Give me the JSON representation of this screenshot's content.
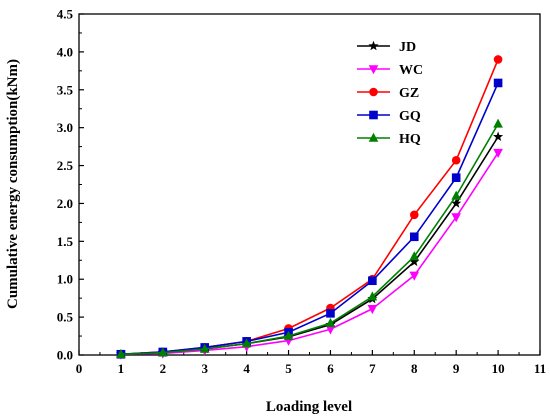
{
  "chart_data": {
    "type": "line",
    "title": "",
    "xlabel": "Loading level",
    "ylabel": "Cumulative energy consumption(kNm)",
    "xlim": [
      0,
      11
    ],
    "ylim": [
      0,
      4.5
    ],
    "x_ticks": [
      "0",
      "1",
      "2",
      "3",
      "4",
      "5",
      "6",
      "7",
      "8",
      "9",
      "10",
      "11"
    ],
    "y_ticks": [
      "0.0",
      "0.5",
      "1.0",
      "1.5",
      "2.0",
      "2.5",
      "3.0",
      "3.5",
      "4.0",
      "4.5"
    ],
    "grid": false,
    "legend_position": "top-right",
    "x": [
      1,
      2,
      3,
      4,
      5,
      6,
      7,
      8,
      9,
      10
    ],
    "series": [
      {
        "name": "JD",
        "color": "#000000",
        "marker": "star",
        "values": [
          0.01,
          0.03,
          0.08,
          0.15,
          0.24,
          0.4,
          0.74,
          1.23,
          2.0,
          2.88
        ]
      },
      {
        "name": "WC",
        "color": "#ff00ff",
        "marker": "triangle-down",
        "values": [
          0.01,
          0.02,
          0.06,
          0.11,
          0.19,
          0.34,
          0.61,
          1.05,
          1.82,
          2.67
        ]
      },
      {
        "name": "GZ",
        "color": "#ff0000",
        "marker": "circle",
        "values": [
          0.01,
          0.04,
          0.1,
          0.18,
          0.35,
          0.62,
          1.0,
          1.85,
          2.57,
          3.9
        ]
      },
      {
        "name": "GQ",
        "color": "#0000cc",
        "marker": "square",
        "values": [
          0.01,
          0.04,
          0.1,
          0.18,
          0.3,
          0.55,
          0.98,
          1.56,
          2.34,
          3.59
        ]
      },
      {
        "name": "HQ",
        "color": "#008000",
        "marker": "triangle-up",
        "values": [
          0.01,
          0.03,
          0.08,
          0.15,
          0.25,
          0.42,
          0.77,
          1.3,
          2.1,
          3.05
        ]
      }
    ]
  }
}
